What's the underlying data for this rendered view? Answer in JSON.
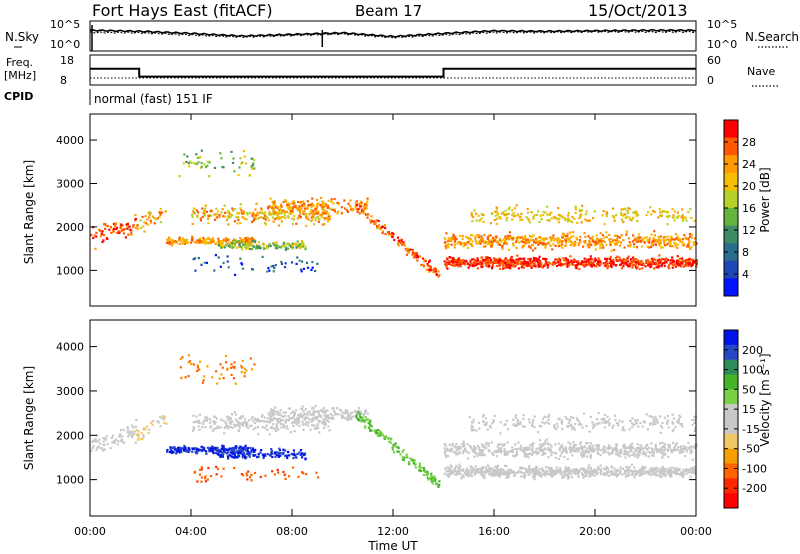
{
  "header": {
    "title": "Fort Hays East (fitACF)",
    "beam": "Beam 17",
    "date": "15/Oct/2013"
  },
  "top_panels": {
    "nsky_label": "N.Sky",
    "nsearch_label": "N.Search",
    "nsky_ticks": [
      "10^5",
      "10^0"
    ],
    "nsearch_ticks": [
      "10^5",
      "10^0"
    ],
    "freq_label_1": "Freq.",
    "freq_label_2": "[MHz]",
    "freq_ticks": [
      "18",
      "8"
    ],
    "nave_label": "Nave",
    "nave_ticks": [
      "60",
      "0"
    ],
    "cpid_label": "CPID",
    "cpid_text": "normal (fast) 151 IF"
  },
  "chart_data": [
    {
      "type": "line",
      "name": "noise",
      "x": [
        0,
        2,
        4,
        6,
        8,
        10,
        12,
        14,
        16,
        18,
        20,
        22,
        24
      ],
      "series": [
        {
          "values": [
            3.6,
            3.4,
            3.0,
            2.5,
            2.8,
            3.1,
            2.4,
            3.0,
            3.5,
            3.4,
            3.5,
            3.6,
            3.6
          ]
        },
        {
          "values": [
            3.2,
            3.1,
            2.7,
            2.3,
            2.6,
            2.9,
            2.2,
            2.7,
            3.2,
            3.2,
            3.3,
            3.3,
            3.3
          ]
        }
      ]
    },
    {
      "type": "line",
      "name": "frequency",
      "x": [
        0,
        1.95,
        1.95,
        14.0,
        14.0,
        24
      ],
      "series": [
        {
          "values": [
            13.4,
            13.4,
            10.8,
            10.8,
            13.4,
            13.4
          ]
        }
      ],
      "ylim": [
        8,
        18
      ]
    },
    {
      "type": "heatmap",
      "name": "power",
      "ylabel": "Slant Range [km]",
      "xlim": [
        0,
        24
      ],
      "ylim": [
        180,
        4600
      ],
      "yticks": [
        1000,
        2000,
        3000,
        4000
      ],
      "colorbar": {
        "label": "Power [dB]",
        "ticks": [
          "28",
          "24",
          "20",
          "16",
          "12",
          "8",
          "4"
        ],
        "colors": [
          "#ff0000",
          "#ff5a00",
          "#ff9a00",
          "#f5be00",
          "#b4d228",
          "#64b43c",
          "#3c8c64",
          "#286e8c",
          "#1e46b4",
          "#0014ff"
        ]
      }
    },
    {
      "type": "heatmap",
      "name": "velocity",
      "ylabel": "Slant Range [km]",
      "xlabel": "Time UT",
      "xlim": [
        0,
        24
      ],
      "ylim": [
        180,
        4600
      ],
      "yticks": [
        1000,
        2000,
        3000,
        4000
      ],
      "xticks": [
        "00:00",
        "04:00",
        "08:00",
        "12:00",
        "16:00",
        "20:00",
        "00:00"
      ],
      "colorbar": {
        "label": "Velocity [m s⁻¹]",
        "ticks": [
          "200",
          "100",
          "50",
          "15",
          "-15",
          "-50",
          "-100",
          "-200"
        ],
        "colors": [
          "#0014e6",
          "#2846c8",
          "#2d8c5a",
          "#46b428",
          "#78d246",
          "#c8c8c8",
          "#c8c8c8",
          "#f0c864",
          "#f5a000",
          "#ff6400",
          "#ff2800",
          "#ff0000"
        ]
      }
    }
  ],
  "colors": {
    "axis": "#000000",
    "background": "#ffffff"
  }
}
